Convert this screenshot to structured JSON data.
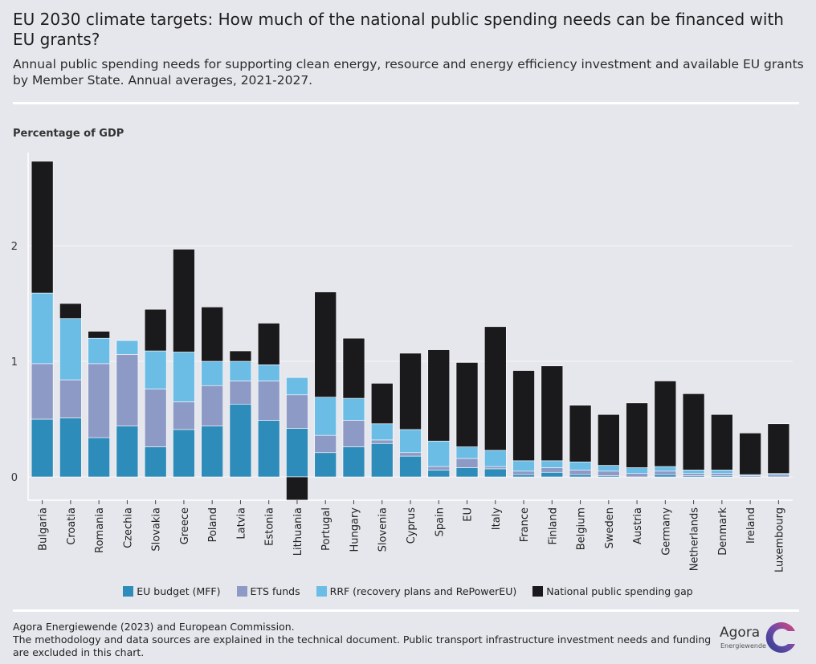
{
  "header": {
    "title": "EU 2030 climate targets: How much of the national public spending needs can be financed with EU grants?",
    "subtitle": "Annual public spending needs for supporting clean energy, resource and energy efficiency investment and available EU grants by Member State. Annual averages, 2021-2027."
  },
  "colors": {
    "mff": "#2e8cba",
    "ets": "#8e9ac6",
    "rrf": "#6bbde6",
    "gap": "#1a1a1d",
    "grid": "#f2f2f5"
  },
  "chart_data": {
    "type": "bar",
    "stacked": true,
    "ylabel": "Percentage of GDP",
    "ylim": [
      -0.2,
      2.8
    ],
    "yticks": [
      0,
      1,
      2
    ],
    "grid": true,
    "legend_position": "bottom",
    "categories": [
      "Bulgaria",
      "Croatia",
      "Romania",
      "Czechia",
      "Slovakia",
      "Greece",
      "Poland",
      "Latvia",
      "Estonia",
      "Lithuania",
      "Portugal",
      "Hungary",
      "Slovenia",
      "Cyprus",
      "Spain",
      "EU",
      "Italy",
      "France",
      "Finland",
      "Belgium",
      "Sweden",
      "Austria",
      "Germany",
      "Netherlands",
      "Denmark",
      "Ireland",
      "Luxembourg"
    ],
    "series": [
      {
        "name": "EU budget (MFF)",
        "values": [
          0.5,
          0.51,
          0.34,
          0.44,
          0.26,
          0.41,
          0.44,
          0.63,
          0.49,
          0.42,
          0.21,
          0.26,
          0.29,
          0.18,
          0.06,
          0.08,
          0.07,
          0.02,
          0.04,
          0.02,
          0.01,
          0.0,
          0.02,
          0.01,
          0.01,
          0.0,
          0.0
        ]
      },
      {
        "name": "ETS funds",
        "values": [
          0.48,
          0.33,
          0.64,
          0.62,
          0.5,
          0.24,
          0.35,
          0.2,
          0.34,
          0.29,
          0.15,
          0.23,
          0.03,
          0.03,
          0.03,
          0.08,
          0.02,
          0.03,
          0.04,
          0.04,
          0.04,
          0.03,
          0.03,
          0.02,
          0.02,
          0.01,
          0.02
        ]
      },
      {
        "name": "RRF (recovery plans and RePowerEU)",
        "values": [
          0.61,
          0.53,
          0.22,
          0.12,
          0.33,
          0.43,
          0.21,
          0.17,
          0.14,
          0.15,
          0.33,
          0.19,
          0.14,
          0.2,
          0.22,
          0.1,
          0.14,
          0.09,
          0.06,
          0.07,
          0.05,
          0.05,
          0.04,
          0.03,
          0.03,
          0.01,
          0.01
        ]
      },
      {
        "name": "National public spending gap",
        "values": [
          1.14,
          0.13,
          0.06,
          0.0,
          0.36,
          0.89,
          0.47,
          0.09,
          0.36,
          -0.2,
          0.91,
          0.52,
          0.35,
          0.66,
          0.79,
          0.73,
          1.07,
          0.78,
          0.82,
          0.49,
          0.44,
          0.56,
          0.74,
          0.66,
          0.48,
          0.36,
          0.43
        ]
      }
    ]
  },
  "legend": [
    {
      "label": "EU budget (MFF)",
      "color": "#2e8cba"
    },
    {
      "label": "ETS funds",
      "color": "#8e9ac6"
    },
    {
      "label": "RRF (recovery plans and RePowerEU)",
      "color": "#6bbde6"
    },
    {
      "label": "National public spending gap",
      "color": "#1a1a1d"
    }
  ],
  "footer": {
    "source": "Agora Energiewende (2023) and European Commission.",
    "note": "The methodology and data sources are explained in the technical document. Public transport infrastructure investment needs and funding are excluded in this chart."
  },
  "logo": {
    "name": "Agora",
    "sub": "Energiewende"
  }
}
